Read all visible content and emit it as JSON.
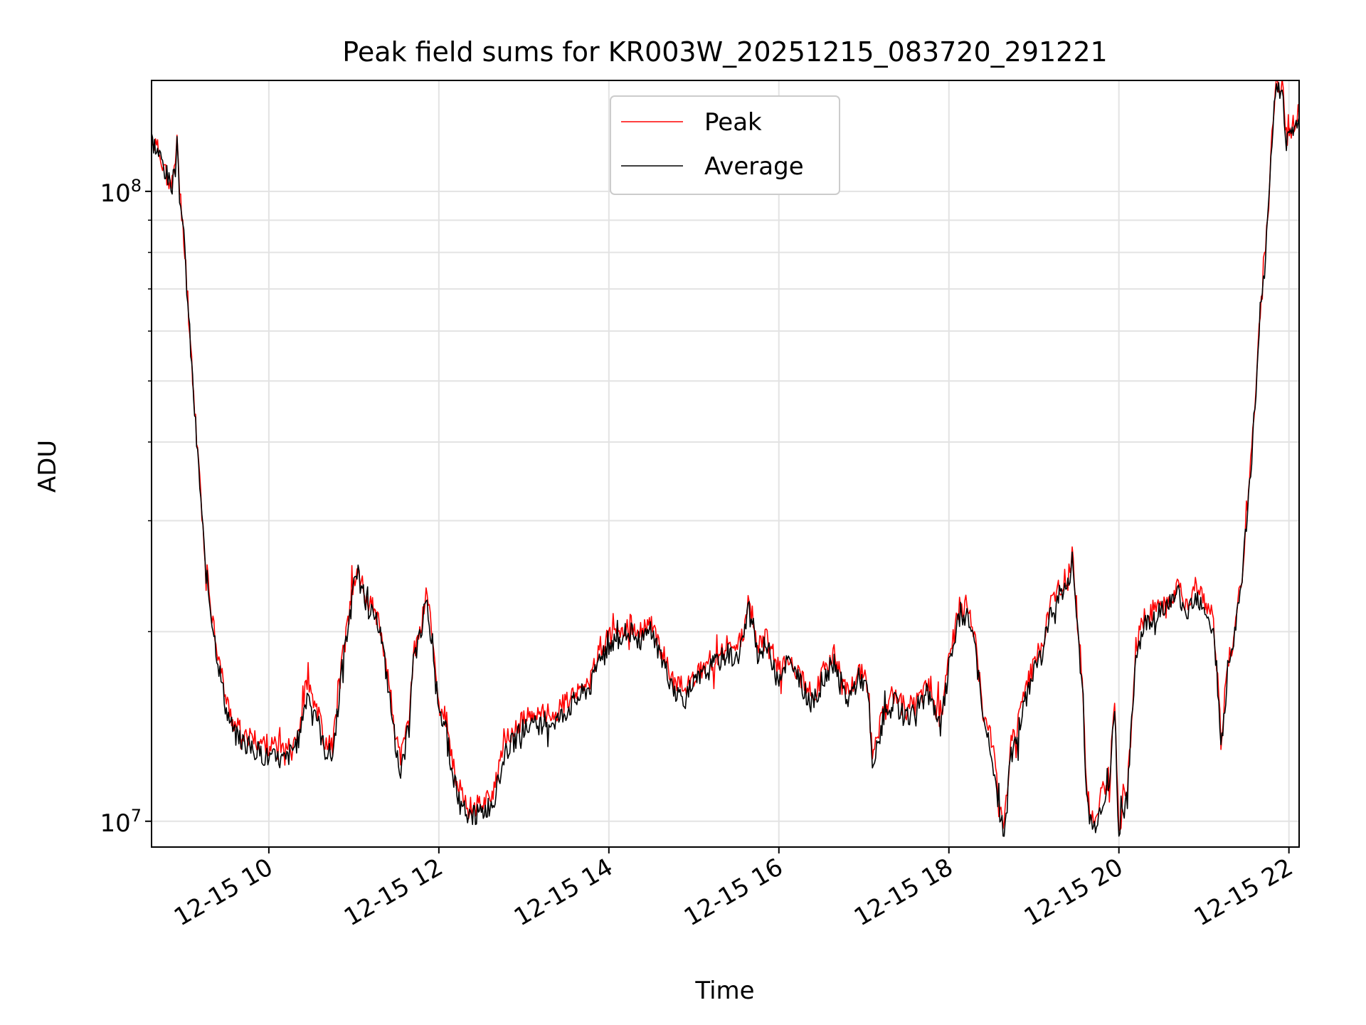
{
  "chart_data": {
    "type": "line",
    "title": "Peak field sums for KR003W_20251215_083720_291221",
    "xlabel": "Time",
    "ylabel": "ADU",
    "yscale": "log",
    "xlim": [
      8.62,
      22.12
    ],
    "ylim": [
      9100000,
      150000000
    ],
    "grid": true,
    "legend_position": "top-center",
    "x_ticks": [
      {
        "x": 10,
        "label": "12-15 10"
      },
      {
        "x": 12,
        "label": "12-15 12"
      },
      {
        "x": 14,
        "label": "12-15 14"
      },
      {
        "x": 16,
        "label": "12-15 16"
      },
      {
        "x": 18,
        "label": "12-15 18"
      },
      {
        "x": 20,
        "label": "12-15 20"
      },
      {
        "x": 22,
        "label": "12-15 22"
      }
    ],
    "y_ticks": [
      {
        "y": 10000000,
        "base": "10",
        "exp": "7"
      },
      {
        "y": 100000000,
        "base": "10",
        "exp": "8"
      }
    ],
    "series": [
      {
        "name": "Peak",
        "color": "#ff0000",
        "points": [
          [
            8.62,
            122000000
          ],
          [
            8.75,
            112000000
          ],
          [
            8.85,
            102000000
          ],
          [
            8.9,
            108000000
          ],
          [
            8.92,
            125000000
          ],
          [
            8.95,
            100000000
          ],
          [
            9.0,
            85000000
          ],
          [
            9.08,
            57000000
          ],
          [
            9.15,
            41000000
          ],
          [
            9.2,
            33000000
          ],
          [
            9.25,
            26000000
          ],
          [
            9.32,
            22000000
          ],
          [
            9.4,
            18500000
          ],
          [
            9.5,
            15500000
          ],
          [
            9.6,
            14200000
          ],
          [
            9.8,
            13500000
          ],
          [
            10.0,
            13200000
          ],
          [
            10.2,
            13000000
          ],
          [
            10.35,
            14000000
          ],
          [
            10.45,
            16500000
          ],
          [
            10.55,
            15500000
          ],
          [
            10.65,
            13500000
          ],
          [
            10.75,
            13200000
          ],
          [
            10.85,
            17500000
          ],
          [
            11.0,
            24000000
          ],
          [
            11.05,
            25000000
          ],
          [
            11.15,
            22500000
          ],
          [
            11.3,
            21000000
          ],
          [
            11.4,
            17000000
          ],
          [
            11.5,
            13500000
          ],
          [
            11.55,
            12500000
          ],
          [
            11.65,
            14500000
          ],
          [
            11.7,
            18500000
          ],
          [
            11.8,
            20500000
          ],
          [
            11.85,
            23500000
          ],
          [
            11.95,
            18500000
          ],
          [
            12.0,
            15000000
          ],
          [
            12.08,
            14800000
          ],
          [
            12.15,
            12500000
          ],
          [
            12.25,
            11000000
          ],
          [
            12.35,
            10500000
          ],
          [
            12.5,
            10700000
          ],
          [
            12.65,
            11200000
          ],
          [
            12.8,
            13500000
          ],
          [
            13.0,
            14500000
          ],
          [
            13.2,
            14800000
          ],
          [
            13.4,
            15000000
          ],
          [
            13.6,
            16000000
          ],
          [
            13.8,
            17000000
          ],
          [
            13.9,
            19000000
          ],
          [
            14.0,
            19500000
          ],
          [
            14.1,
            20000000
          ],
          [
            14.25,
            20500000
          ],
          [
            14.35,
            19800000
          ],
          [
            14.5,
            20500000
          ],
          [
            14.6,
            19000000
          ],
          [
            14.7,
            17500000
          ],
          [
            14.8,
            16500000
          ],
          [
            14.9,
            16200000
          ],
          [
            15.0,
            17000000
          ],
          [
            15.2,
            18000000
          ],
          [
            15.4,
            19000000
          ],
          [
            15.5,
            18500000
          ],
          [
            15.6,
            20500000
          ],
          [
            15.65,
            22500000
          ],
          [
            15.75,
            19000000
          ],
          [
            15.85,
            19500000
          ],
          [
            16.0,
            17500000
          ],
          [
            16.1,
            18500000
          ],
          [
            16.25,
            17000000
          ],
          [
            16.4,
            15800000
          ],
          [
            16.5,
            17000000
          ],
          [
            16.65,
            18500000
          ],
          [
            16.8,
            16000000
          ],
          [
            16.95,
            17500000
          ],
          [
            17.05,
            16500000
          ],
          [
            17.1,
            12500000
          ],
          [
            17.2,
            14500000
          ],
          [
            17.35,
            16000000
          ],
          [
            17.5,
            15000000
          ],
          [
            17.6,
            15500000
          ],
          [
            17.75,
            16500000
          ],
          [
            17.9,
            14500000
          ],
          [
            18.0,
            18000000
          ],
          [
            18.1,
            21000000
          ],
          [
            18.2,
            22000000
          ],
          [
            18.3,
            20000000
          ],
          [
            18.4,
            15000000
          ],
          [
            18.5,
            13500000
          ],
          [
            18.6,
            10500000
          ],
          [
            18.65,
            9700000
          ],
          [
            18.72,
            13000000
          ],
          [
            18.85,
            15000000
          ],
          [
            18.95,
            17000000
          ],
          [
            19.0,
            18000000
          ],
          [
            19.1,
            19000000
          ],
          [
            19.2,
            22000000
          ],
          [
            19.3,
            23500000
          ],
          [
            19.4,
            24000000
          ],
          [
            19.45,
            26500000
          ],
          [
            19.5,
            22000000
          ],
          [
            19.58,
            16000000
          ],
          [
            19.62,
            11000000
          ],
          [
            19.7,
            10000000
          ],
          [
            19.8,
            11000000
          ],
          [
            19.9,
            12000000
          ],
          [
            19.95,
            16000000
          ],
          [
            20.0,
            9300000
          ],
          [
            20.05,
            11000000
          ],
          [
            20.1,
            11200000
          ],
          [
            20.2,
            19000000
          ],
          [
            20.3,
            21000000
          ],
          [
            20.45,
            22000000
          ],
          [
            20.6,
            22500000
          ],
          [
            20.7,
            23500000
          ],
          [
            20.8,
            22000000
          ],
          [
            20.9,
            23500000
          ],
          [
            21.0,
            22500000
          ],
          [
            21.1,
            21000000
          ],
          [
            21.15,
            18000000
          ],
          [
            21.2,
            13500000
          ],
          [
            21.28,
            17500000
          ],
          [
            21.35,
            19500000
          ],
          [
            21.45,
            25000000
          ],
          [
            21.55,
            37000000
          ],
          [
            21.65,
            60000000
          ],
          [
            21.75,
            90000000
          ],
          [
            21.8,
            120000000
          ],
          [
            21.84,
            147000000
          ],
          [
            21.88,
            145000000
          ],
          [
            21.92,
            150000000
          ],
          [
            21.97,
            122000000
          ],
          [
            22.05,
            127000000
          ],
          [
            22.12,
            133000000
          ]
        ]
      },
      {
        "name": "Average",
        "color": "#000000",
        "points": [
          [
            8.62,
            121000000
          ],
          [
            8.75,
            111000000
          ],
          [
            8.85,
            101000000
          ],
          [
            8.9,
            107000000
          ],
          [
            8.92,
            123000000
          ],
          [
            8.95,
            99000000
          ],
          [
            9.0,
            84000000
          ],
          [
            9.08,
            56000000
          ],
          [
            9.15,
            40000000
          ],
          [
            9.2,
            32500000
          ],
          [
            9.25,
            25500000
          ],
          [
            9.32,
            21500000
          ],
          [
            9.4,
            18000000
          ],
          [
            9.5,
            15000000
          ],
          [
            9.6,
            13700000
          ],
          [
            9.8,
            13000000
          ],
          [
            10.0,
            12600000
          ],
          [
            10.2,
            12500000
          ],
          [
            10.35,
            13500000
          ],
          [
            10.45,
            16000000
          ],
          [
            10.55,
            15000000
          ],
          [
            10.65,
            13000000
          ],
          [
            10.75,
            12700000
          ],
          [
            10.85,
            17000000
          ],
          [
            11.0,
            23500000
          ],
          [
            11.05,
            24500000
          ],
          [
            11.15,
            22000000
          ],
          [
            11.3,
            20500000
          ],
          [
            11.4,
            16500000
          ],
          [
            11.5,
            13000000
          ],
          [
            11.55,
            12000000
          ],
          [
            11.65,
            14000000
          ],
          [
            11.7,
            18000000
          ],
          [
            11.8,
            20000000
          ],
          [
            11.85,
            23000000
          ],
          [
            11.95,
            18000000
          ],
          [
            12.0,
            14600000
          ],
          [
            12.08,
            14400000
          ],
          [
            12.15,
            12000000
          ],
          [
            12.25,
            10600000
          ],
          [
            12.35,
            10100000
          ],
          [
            12.5,
            10300000
          ],
          [
            12.65,
            10800000
          ],
          [
            12.8,
            13000000
          ],
          [
            13.0,
            14000000
          ],
          [
            13.2,
            14300000
          ],
          [
            13.4,
            14500000
          ],
          [
            13.6,
            15500000
          ],
          [
            13.8,
            16500000
          ],
          [
            13.9,
            18500000
          ],
          [
            14.0,
            19000000
          ],
          [
            14.1,
            19500000
          ],
          [
            14.25,
            20000000
          ],
          [
            14.35,
            19300000
          ],
          [
            14.5,
            20000000
          ],
          [
            14.6,
            18500000
          ],
          [
            14.7,
            17000000
          ],
          [
            14.8,
            16000000
          ],
          [
            14.9,
            15700000
          ],
          [
            15.0,
            16500000
          ],
          [
            15.2,
            17500000
          ],
          [
            15.4,
            18500000
          ],
          [
            15.5,
            18000000
          ],
          [
            15.6,
            20000000
          ],
          [
            15.65,
            22000000
          ],
          [
            15.75,
            18500000
          ],
          [
            15.85,
            19000000
          ],
          [
            16.0,
            17000000
          ],
          [
            16.1,
            18000000
          ],
          [
            16.25,
            16500000
          ],
          [
            16.4,
            15300000
          ],
          [
            16.5,
            16500000
          ],
          [
            16.65,
            18000000
          ],
          [
            16.8,
            15500000
          ],
          [
            16.95,
            17000000
          ],
          [
            17.05,
            16000000
          ],
          [
            17.1,
            12000000
          ],
          [
            17.2,
            14000000
          ],
          [
            17.35,
            15500000
          ],
          [
            17.5,
            14500000
          ],
          [
            17.6,
            15000000
          ],
          [
            17.75,
            16000000
          ],
          [
            17.9,
            14000000
          ],
          [
            18.0,
            17500000
          ],
          [
            18.1,
            20500000
          ],
          [
            18.2,
            21500000
          ],
          [
            18.3,
            19500000
          ],
          [
            18.4,
            14500000
          ],
          [
            18.5,
            13000000
          ],
          [
            18.6,
            10200000
          ],
          [
            18.65,
            9500000
          ],
          [
            18.72,
            12500000
          ],
          [
            18.85,
            14500000
          ],
          [
            18.95,
            16500000
          ],
          [
            19.0,
            17500000
          ],
          [
            19.1,
            18500000
          ],
          [
            19.2,
            21500000
          ],
          [
            19.3,
            23000000
          ],
          [
            19.4,
            23500000
          ],
          [
            19.45,
            26000000
          ],
          [
            19.5,
            21500000
          ],
          [
            19.58,
            15500000
          ],
          [
            19.62,
            10700000
          ],
          [
            19.7,
            9700000
          ],
          [
            19.8,
            10700000
          ],
          [
            19.9,
            11700000
          ],
          [
            19.95,
            15500000
          ],
          [
            20.0,
            9100000
          ],
          [
            20.05,
            10700000
          ],
          [
            20.1,
            10900000
          ],
          [
            20.2,
            18500000
          ],
          [
            20.3,
            20500000
          ],
          [
            20.45,
            21500000
          ],
          [
            20.6,
            22000000
          ],
          [
            20.7,
            23000000
          ],
          [
            20.8,
            21500000
          ],
          [
            20.9,
            23000000
          ],
          [
            21.0,
            22000000
          ],
          [
            21.1,
            20500000
          ],
          [
            21.15,
            17500000
          ],
          [
            21.2,
            13000000
          ],
          [
            21.28,
            17000000
          ],
          [
            21.35,
            19000000
          ],
          [
            21.45,
            24500000
          ],
          [
            21.55,
            36000000
          ],
          [
            21.65,
            58000000
          ],
          [
            21.75,
            88000000
          ],
          [
            21.8,
            118000000
          ],
          [
            21.84,
            145000000
          ],
          [
            21.88,
            143000000
          ],
          [
            21.92,
            148000000
          ],
          [
            21.97,
            120000000
          ],
          [
            22.05,
            125000000
          ],
          [
            22.12,
            131000000
          ]
        ]
      }
    ]
  }
}
